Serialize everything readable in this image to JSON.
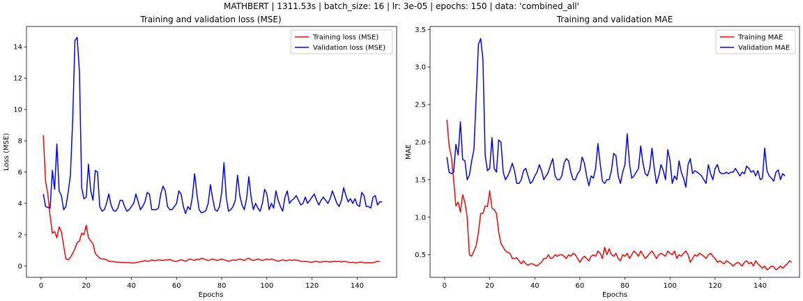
{
  "figure": {
    "suptitle": "MATHBERT | 1311.53s | batch_size: 16 | lr: 3e-05 | epochs: 150 | data: 'combined_all'"
  },
  "chart_data": [
    {
      "type": "line",
      "title": "Training and validation loss (MSE)",
      "xlabel": "Epochs",
      "ylabel": "Loss (MSE)",
      "xlim": [
        -6.45,
        157.45
      ],
      "ylim": [
        -0.72,
        15.3
      ],
      "xticks": [
        0,
        20,
        40,
        60,
        80,
        100,
        120,
        140
      ],
      "yticks": [
        0,
        2,
        4,
        6,
        8,
        10,
        12,
        14
      ],
      "legend_location": "top-right",
      "series": [
        {
          "name": "Training loss (MSE)",
          "color": "#ff0000",
          "values": [
            8.35,
            5.4,
            4.6,
            3.2,
            2.1,
            2.2,
            1.8,
            2.5,
            2.2,
            1.3,
            0.45,
            0.4,
            0.55,
            0.8,
            1.1,
            1.5,
            1.6,
            2.1,
            2.0,
            2.6,
            1.8,
            1.6,
            1.4,
            0.8,
            0.65,
            0.5,
            0.45,
            0.45,
            0.4,
            0.3,
            0.3,
            0.28,
            0.25,
            0.25,
            0.24,
            0.23,
            0.22,
            0.23,
            0.22,
            0.2,
            0.2,
            0.22,
            0.25,
            0.28,
            0.3,
            0.35,
            0.3,
            0.32,
            0.4,
            0.35,
            0.35,
            0.4,
            0.38,
            0.35,
            0.4,
            0.38,
            0.42,
            0.35,
            0.3,
            0.3,
            0.35,
            0.4,
            0.35,
            0.3,
            0.4,
            0.45,
            0.4,
            0.35,
            0.45,
            0.4,
            0.5,
            0.45,
            0.4,
            0.35,
            0.4,
            0.45,
            0.4,
            0.35,
            0.4,
            0.45,
            0.4,
            0.35,
            0.3,
            0.35,
            0.4,
            0.35,
            0.4,
            0.45,
            0.4,
            0.35,
            0.45,
            0.5,
            0.4,
            0.35,
            0.4,
            0.45,
            0.4,
            0.35,
            0.4,
            0.45,
            0.4,
            0.45,
            0.4,
            0.35,
            0.3,
            0.35,
            0.4,
            0.35,
            0.35,
            0.4,
            0.35,
            0.4,
            0.38,
            0.35,
            0.3,
            0.28,
            0.3,
            0.28,
            0.25,
            0.25,
            0.28,
            0.3,
            0.25,
            0.25,
            0.28,
            0.3,
            0.28,
            0.25,
            0.28,
            0.3,
            0.28,
            0.3,
            0.25,
            0.3,
            0.28,
            0.25,
            0.22,
            0.25,
            0.2,
            0.22,
            0.25,
            0.25,
            0.22,
            0.2,
            0.22,
            0.2,
            0.22,
            0.25,
            0.3,
            0.28
          ]
        },
        {
          "name": "Validation loss (MSE)",
          "color": "#0000ff",
          "values": [
            4.6,
            3.8,
            3.75,
            3.7,
            6.1,
            4.9,
            7.8,
            4.8,
            4.5,
            3.6,
            3.8,
            4.7,
            5.8,
            9.3,
            14.4,
            14.6,
            12.4,
            5.0,
            4.3,
            4.4,
            6.5,
            4.8,
            4.2,
            6.1,
            6.0,
            3.8,
            3.5,
            3.6,
            4.0,
            4.6,
            3.9,
            3.55,
            3.5,
            3.7,
            4.2,
            4.2,
            3.8,
            3.5,
            3.6,
            3.8,
            4.0,
            4.6,
            4.1,
            3.6,
            3.8,
            4.1,
            4.7,
            4.6,
            3.6,
            3.6,
            3.6,
            3.7,
            4.6,
            5.1,
            4.8,
            3.8,
            3.6,
            3.6,
            3.8,
            4.0,
            4.8,
            4.6,
            3.8,
            3.35,
            3.8,
            3.6,
            4.4,
            5.9,
            4.6,
            3.6,
            3.4,
            3.45,
            3.55,
            4.0,
            5.2,
            4.3,
            3.6,
            3.5,
            3.8,
            4.7,
            6.6,
            4.4,
            3.5,
            3.6,
            3.8,
            4.2,
            5.8,
            4.5,
            3.9,
            3.6,
            4.3,
            5.7,
            4.4,
            3.6,
            4.0,
            3.7,
            3.5,
            4.0,
            4.9,
            4.6,
            3.6,
            4.0,
            3.7,
            4.8,
            4.2,
            3.8,
            3.5,
            4.4,
            4.8,
            4.0,
            4.2,
            4.3,
            4.5,
            4.2,
            3.9,
            4.0,
            4.4,
            4.0,
            4.2,
            4.4,
            4.6,
            4.2,
            3.9,
            4.2,
            4.4,
            4.2,
            4.0,
            4.3,
            4.8,
            4.4,
            4.0,
            3.8,
            4.2,
            5.0,
            4.5,
            4.1,
            4.3,
            4.0,
            4.3,
            3.9,
            3.8,
            4.7,
            4.5,
            3.8,
            3.8,
            3.7,
            4.4,
            4.5,
            3.9,
            4.1,
            4.1
          ]
        }
      ]
    },
    {
      "type": "line",
      "title": "Training and validation MAE",
      "xlabel": "Epochs",
      "ylabel": "MAE",
      "xlim": [
        -6.45,
        157.45
      ],
      "ylim": [
        0.2,
        3.54
      ],
      "xticks": [
        0,
        20,
        40,
        60,
        80,
        100,
        120,
        140
      ],
      "yticks": [
        0.5,
        1.0,
        1.5,
        2.0,
        2.5,
        3.0,
        3.5
      ],
      "ytick_labels": [
        "0.5",
        "1.0",
        "1.5",
        "2.0",
        "2.5",
        "3.0",
        "3.5"
      ],
      "legend_location": "top-right",
      "series": [
        {
          "name": "Training MAE",
          "color": "#ff0000",
          "values": [
            2.3,
            1.95,
            1.8,
            1.5,
            1.15,
            1.2,
            1.07,
            1.3,
            1.2,
            1.0,
            0.5,
            0.48,
            0.55,
            0.62,
            0.8,
            1.05,
            1.05,
            1.15,
            1.14,
            1.35,
            1.12,
            1.1,
            1.05,
            0.8,
            0.65,
            0.6,
            0.55,
            0.53,
            0.52,
            0.45,
            0.45,
            0.46,
            0.42,
            0.38,
            0.42,
            0.38,
            0.36,
            0.38,
            0.38,
            0.36,
            0.35,
            0.38,
            0.4,
            0.45,
            0.45,
            0.5,
            0.45,
            0.46,
            0.5,
            0.48,
            0.5,
            0.5,
            0.48,
            0.45,
            0.5,
            0.48,
            0.52,
            0.5,
            0.45,
            0.4,
            0.45,
            0.48,
            0.45,
            0.42,
            0.48,
            0.5,
            0.48,
            0.55,
            0.52,
            0.45,
            0.6,
            0.5,
            0.58,
            0.5,
            0.48,
            0.52,
            0.45,
            0.42,
            0.5,
            0.48,
            0.52,
            0.45,
            0.5,
            0.55,
            0.52,
            0.48,
            0.55,
            0.5,
            0.45,
            0.48,
            0.52,
            0.55,
            0.5,
            0.45,
            0.5,
            0.52,
            0.5,
            0.48,
            0.55,
            0.52,
            0.5,
            0.55,
            0.45,
            0.5,
            0.48,
            0.52,
            0.55,
            0.5,
            0.4,
            0.45,
            0.5,
            0.48,
            0.52,
            0.5,
            0.48,
            0.45,
            0.5,
            0.52,
            0.48,
            0.45,
            0.4,
            0.42,
            0.4,
            0.38,
            0.42,
            0.4,
            0.38,
            0.35,
            0.38,
            0.4,
            0.38,
            0.35,
            0.4,
            0.42,
            0.38,
            0.4,
            0.35,
            0.42,
            0.38,
            0.35,
            0.32,
            0.35,
            0.3,
            0.32,
            0.35,
            0.34,
            0.3,
            0.32,
            0.35,
            0.32,
            0.35,
            0.38,
            0.42,
            0.4
          ]
        },
        {
          "name": "Validation MAE",
          "color": "#0000ff",
          "values": [
            1.8,
            1.6,
            1.58,
            1.6,
            1.97,
            1.83,
            2.27,
            1.77,
            1.75,
            1.5,
            1.56,
            1.75,
            1.9,
            2.6,
            3.3,
            3.38,
            3.1,
            1.82,
            1.62,
            1.65,
            2.06,
            1.65,
            1.6,
            2.03,
            2.0,
            1.6,
            1.5,
            1.55,
            1.62,
            1.72,
            1.62,
            1.45,
            1.45,
            1.5,
            1.62,
            1.65,
            1.55,
            1.45,
            1.48,
            1.55,
            1.6,
            1.7,
            1.62,
            1.5,
            1.55,
            1.6,
            1.7,
            1.78,
            1.55,
            1.5,
            1.5,
            1.55,
            1.72,
            1.78,
            1.75,
            1.6,
            1.5,
            1.5,
            1.58,
            1.62,
            1.8,
            1.72,
            1.55,
            1.42,
            1.55,
            1.52,
            1.65,
            1.98,
            1.72,
            1.48,
            1.45,
            1.5,
            1.5,
            1.62,
            1.85,
            1.82,
            1.55,
            1.45,
            1.6,
            1.7,
            2.11,
            1.72,
            1.52,
            1.55,
            1.6,
            1.65,
            1.95,
            1.72,
            1.58,
            1.55,
            1.65,
            1.92,
            1.65,
            1.45,
            1.55,
            1.7,
            1.62,
            1.5,
            1.9,
            1.75,
            1.45,
            1.55,
            1.5,
            1.75,
            1.6,
            1.52,
            1.4,
            1.7,
            1.78,
            1.58,
            1.62,
            1.6,
            1.58,
            1.55,
            1.5,
            1.45,
            1.7,
            1.58,
            1.5,
            1.65,
            1.7,
            1.6,
            1.58,
            1.58,
            1.6,
            1.58,
            1.6,
            1.6,
            1.65,
            1.6,
            1.55,
            1.6,
            1.58,
            1.68,
            1.65,
            1.6,
            1.62,
            1.55,
            1.62,
            1.5,
            1.52,
            1.92,
            1.62,
            1.55,
            1.52,
            1.48,
            1.6,
            1.63,
            1.5,
            1.58,
            1.55
          ]
        }
      ]
    }
  ]
}
